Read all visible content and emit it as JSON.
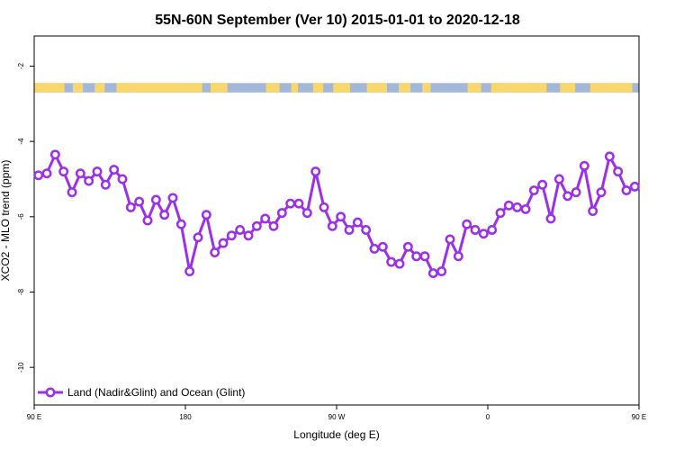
{
  "chart_data": {
    "type": "line",
    "title": "55N-60N September (Ver 10)   2015-01-01 to 2020-12-18",
    "xlabel": "Longitude (deg E)",
    "ylabel": "XCO2 - MLO trend (ppm)",
    "x_unit": "degrees east, unwrapped from 90 to 450",
    "xlim": [
      90,
      450
    ],
    "ylim": [
      -11,
      -1.2
    ],
    "x_ticks": [
      {
        "value": 90,
        "label": "90 E"
      },
      {
        "value": 180,
        "label": "180"
      },
      {
        "value": 270,
        "label": "90 W"
      },
      {
        "value": 360,
        "label": "0"
      },
      {
        "value": 450,
        "label": "90 E"
      }
    ],
    "y_ticks": [
      {
        "value": -2,
        "label": "-2"
      },
      {
        "value": -4,
        "label": "-4"
      },
      {
        "value": -6,
        "label": "-6"
      },
      {
        "value": -8,
        "label": "-8"
      },
      {
        "value": -10,
        "label": "-10"
      }
    ],
    "grid": false,
    "legend_position": "bottom-left",
    "land_ocean_band": {
      "y_range": [
        -2.45,
        -2.7
      ],
      "ocean_color": "#a3b8d8",
      "land_color": "#f9d66e"
    },
    "series": [
      {
        "name": "Land (Nadir&Glint) and Ocean (Glint)",
        "color": "#9b30e8",
        "x": [
          92.5,
          97.5,
          102.5,
          107.5,
          112.5,
          117.5,
          122.5,
          127.5,
          132.5,
          137.5,
          142.5,
          147.5,
          152.5,
          157.5,
          162.5,
          167.5,
          172.5,
          177.5,
          182.5,
          187.5,
          192.5,
          197.5,
          202.5,
          207.5,
          212.5,
          217.5,
          222.5,
          227.5,
          232.5,
          237.5,
          242.5,
          247.5,
          252.5,
          257.5,
          262.5,
          267.5,
          272.5,
          277.5,
          282.5,
          287.5,
          292.5,
          297.5,
          302.5,
          307.5,
          312.5,
          317.5,
          322.5,
          327.5,
          332.5,
          337.5,
          342.5,
          347.5,
          352.5,
          357.5,
          362.5,
          367.5,
          372.5,
          377.5,
          382.5,
          387.5,
          392.5,
          397.5,
          402.5,
          407.5,
          412.5,
          417.5,
          422.5,
          427.5,
          432.5,
          437.5,
          442.5,
          447.5
        ],
        "values": [
          -4.9,
          -4.85,
          -4.35,
          -4.8,
          -5.35,
          -4.85,
          -5.05,
          -4.8,
          -5.15,
          -4.75,
          -5.0,
          -5.75,
          -5.6,
          -6.1,
          -5.55,
          -5.95,
          -5.5,
          -6.2,
          -7.45,
          -6.55,
          -5.95,
          -6.95,
          -6.7,
          -6.5,
          -6.35,
          -6.5,
          -6.25,
          -6.05,
          -6.25,
          -5.9,
          -5.65,
          -5.65,
          -5.9,
          -4.8,
          -5.75,
          -6.25,
          -6.0,
          -6.35,
          -6.15,
          -6.35,
          -6.85,
          -6.8,
          -7.2,
          -7.25,
          -6.8,
          -7.05,
          -7.05,
          -7.5,
          -7.45,
          -6.6,
          -7.05,
          -6.2,
          -6.35,
          -6.45,
          -6.35,
          -5.9,
          -5.7,
          -5.75,
          -5.8,
          -5.3,
          -5.15,
          -6.05,
          -5.0,
          -5.45,
          -5.35,
          -4.65,
          -5.85,
          -5.35,
          -4.4,
          -4.8,
          -5.3,
          -5.2
        ]
      }
    ]
  }
}
